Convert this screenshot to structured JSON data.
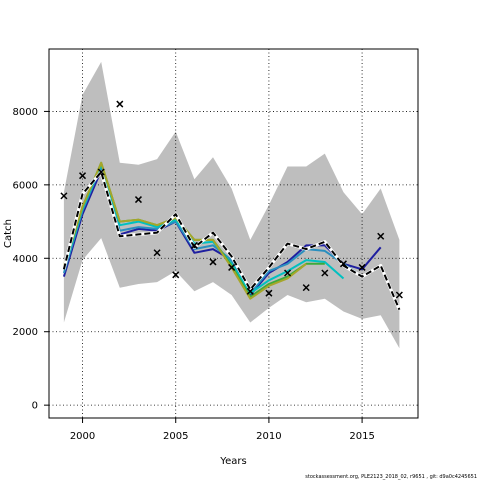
{
  "chart_data": {
    "type": "line",
    "xlabel": "Years",
    "ylabel": "Catch",
    "xlim": [
      1998.2,
      2018.0
    ],
    "ylim": [
      -350,
      9700
    ],
    "x_ticks": [
      2000,
      2005,
      2010,
      2015
    ],
    "y_ticks": [
      0,
      2000,
      4000,
      6000,
      8000
    ],
    "grid": "dotted",
    "caption": "stockassessment.org, PLE2123_2018_02, r9651 , git: d9a0c4245651",
    "band": {
      "x": [
        1999,
        2000,
        2001,
        2002,
        2003,
        2004,
        2005,
        2006,
        2007,
        2008,
        2009,
        2010,
        2011,
        2012,
        2013,
        2014,
        2015,
        2016,
        2017
      ],
      "lower": [
        2250,
        3950,
        4550,
        3200,
        3300,
        3350,
        3650,
        3100,
        3350,
        3000,
        2250,
        2650,
        3000,
        2800,
        2900,
        2550,
        2350,
        2450,
        1550
      ],
      "upper": [
        5800,
        8450,
        9350,
        6600,
        6550,
        6700,
        7450,
        6150,
        6750,
        5900,
        4500,
        5450,
        6500,
        6500,
        6850,
        5800,
        5200,
        5900,
        4500
      ],
      "color": "#bebebe"
    },
    "series": [
      {
        "color": "#1f1fa0",
        "x": [
          1999,
          2000,
          2001,
          2002,
          2003,
          2004,
          2005,
          2006,
          2007,
          2008,
          2009,
          2010,
          2011,
          2012,
          2013,
          2014,
          2015,
          2016
        ],
        "values": [
          3500,
          5200,
          6400,
          4650,
          4800,
          4750,
          5000,
          4150,
          4250,
          3950,
          3000,
          3600,
          3900,
          4350,
          4350,
          3850,
          3700,
          4300
        ]
      },
      {
        "color": "#2a8fbf",
        "x": [
          1999,
          2000,
          2001,
          2002,
          2003,
          2004,
          2005,
          2006,
          2007,
          2008,
          2009,
          2010,
          2011,
          2012,
          2013,
          2014,
          2015
        ],
        "values": [
          3600,
          5300,
          6500,
          4750,
          4850,
          4800,
          5000,
          4250,
          4350,
          3950,
          3050,
          3650,
          3850,
          4250,
          4200,
          3850,
          3500
        ]
      },
      {
        "color": "#00c0c0",
        "x": [
          1999,
          2000,
          2001,
          2002,
          2003,
          2004,
          2005,
          2006,
          2007,
          2008,
          2009,
          2010,
          2011,
          2012,
          2013,
          2014
        ],
        "values": [
          3700,
          5350,
          6550,
          4900,
          5000,
          4850,
          5050,
          4400,
          4450,
          3850,
          3050,
          3400,
          3650,
          3950,
          3900,
          3450
        ]
      },
      {
        "color": "#3caa3c",
        "x": [
          1999,
          2000,
          2001,
          2002,
          2003,
          2004,
          2005,
          2006,
          2007,
          2008,
          2009,
          2010,
          2011,
          2012,
          2013
        ],
        "values": [
          3750,
          5400,
          6600,
          5000,
          5050,
          4900,
          5100,
          4500,
          4500,
          3800,
          2950,
          3300,
          3500,
          3850,
          3850
        ]
      },
      {
        "color": "#a6a62a",
        "x": [
          1999,
          2000,
          2001,
          2002,
          2003,
          2004,
          2005,
          2006,
          2007,
          2008,
          2009,
          2010,
          2011,
          2012
        ],
        "values": [
          3800,
          5400,
          6600,
          5000,
          5050,
          4900,
          5100,
          4500,
          4500,
          3750,
          2900,
          3250,
          3450,
          3850
        ]
      },
      {
        "color": "#000000",
        "dashed": true,
        "x": [
          1999,
          2000,
          2001,
          2002,
          2003,
          2004,
          2005,
          2006,
          2007,
          2008,
          2009,
          2010,
          2011,
          2012,
          2013,
          2014,
          2015,
          2016,
          2017
        ],
        "values": [
          3700,
          5750,
          6350,
          4600,
          4650,
          4700,
          5200,
          4300,
          4700,
          4050,
          3150,
          3750,
          4400,
          4250,
          4450,
          3800,
          3500,
          3800,
          2600
        ]
      }
    ],
    "observations": {
      "x": [
        1999,
        2000,
        2001,
        2002,
        2003,
        2004,
        2005,
        2006,
        2007,
        2008,
        2009,
        2010,
        2011,
        2012,
        2013,
        2014,
        2015,
        2016,
        2017
      ],
      "values": [
        5700,
        6250,
        6350,
        8200,
        5600,
        4150,
        3550,
        4350,
        3900,
        3750,
        3100,
        3050,
        3600,
        3200,
        3600,
        3850,
        3750,
        4600,
        3000
      ]
    }
  }
}
